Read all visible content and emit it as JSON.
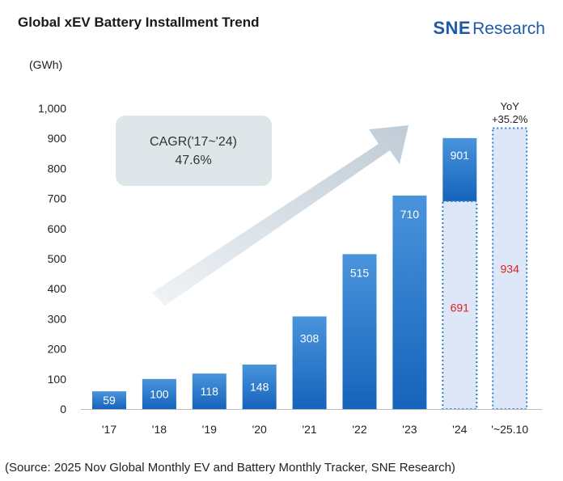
{
  "header": {
    "title": "Global xEV Battery Installment Trend",
    "logo_sne": "SNE",
    "logo_research": "Research"
  },
  "unit_label": "(GWh)",
  "source": "(Source: 2025 Nov Global Monthly EV and Battery Monthly Tracker, SNE Research)",
  "chart_data": {
    "type": "bar",
    "title": "Global xEV Battery Installment Trend",
    "ylabel": "(GWh)",
    "ylim": [
      0,
      1000
    ],
    "yticks": [
      "0",
      "100",
      "200",
      "300",
      "400",
      "500",
      "600",
      "700",
      "800",
      "900",
      "1,000"
    ],
    "categories": [
      "'17",
      "'18",
      "'19",
      "'20",
      "'21",
      "'22",
      "'23",
      "'24",
      "'~25.10"
    ],
    "values": [
      59,
      100,
      118,
      148,
      308,
      515,
      710,
      901,
      934
    ],
    "value_labels": [
      "59",
      "100",
      "118",
      "148",
      "308",
      "515",
      "710",
      "901",
      "934"
    ],
    "partial_overlay": {
      "category": "'24",
      "value": 691,
      "label": "691"
    },
    "annotations": {
      "cagr_line1": "CAGR('17~'24)",
      "cagr_line2": "47.6%",
      "yoy_line1": "YoY",
      "yoy_line2": "+35.2%"
    },
    "grid": false,
    "colors": {
      "bar_top": "#4a90d9",
      "bar_bottom": "#1460b8",
      "dotted_fill": "#dde7f7",
      "dotted_border": "#2f7fd0",
      "highlight_text": "#e02020",
      "cagr_box": "#dfe6ea"
    }
  }
}
